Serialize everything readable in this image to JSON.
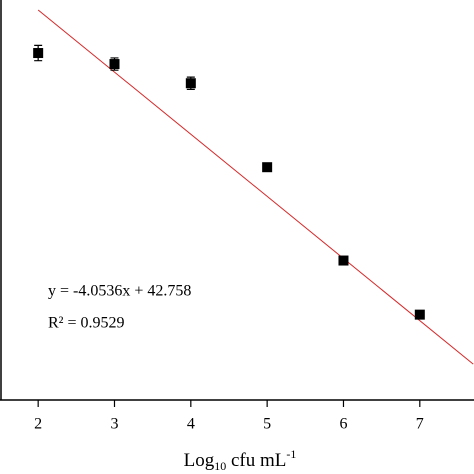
{
  "chart_data": {
    "type": "scatter",
    "x": [
      2,
      3,
      4,
      5,
      6,
      7
    ],
    "series": [
      {
        "color": "#000000",
        "values": [
          31.84,
          31.12,
          29.87,
          24.39,
          18.3,
          14.77
        ],
        "errors": [
          0.5,
          0.4,
          0.4,
          0,
          0,
          0
        ]
      }
    ],
    "fit_line": {
      "x": [
        2,
        7.7
      ],
      "y": [
        34.65,
        11.54
      ],
      "color": "#d62728"
    },
    "xlim": [
      1.5,
      7.71
    ],
    "ylim": [
      9.2,
      35.3
    ],
    "xticks": [
      2,
      3,
      4,
      5,
      6,
      7
    ],
    "x_label": [
      "Log",
      "10",
      " cfu mL",
      "-1"
    ],
    "annotations": [
      "y = -4.0536x + 42.758",
      "R² = 0.9529"
    ]
  }
}
